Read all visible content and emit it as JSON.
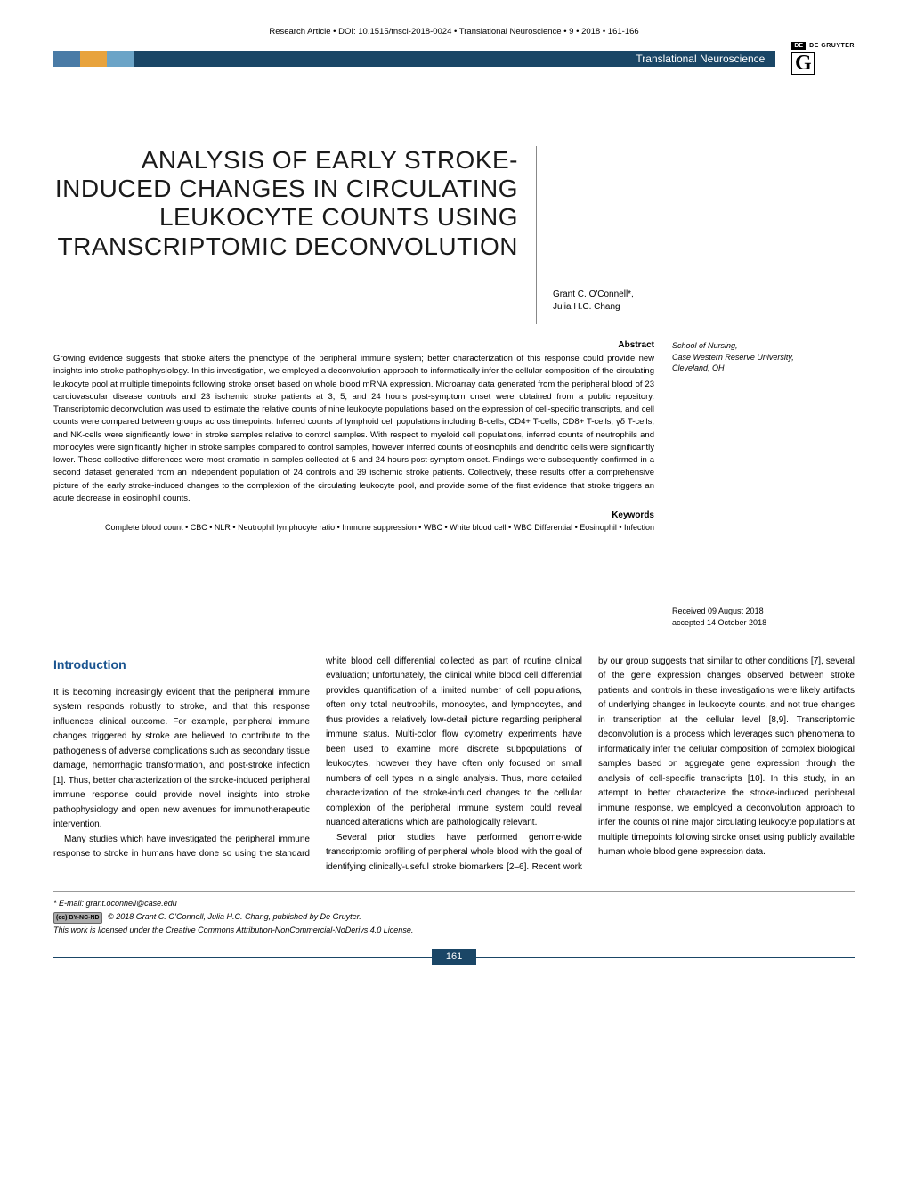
{
  "header": {
    "citation": "Research Article • DOI: 10.1515/tnsci-2018-0024 • Translational Neuroscience • 9 • 2018 • 161-166",
    "journal": "Translational Neuroscience",
    "publisher_de": "DE",
    "publisher_name": "DE GRUYTER",
    "publisher_g": "G"
  },
  "title": "ANALYSIS OF EARLY STROKE-INDUCED CHANGES IN CIRCULATING LEUKOCYTE COUNTS USING TRANSCRIPTOMIC DECONVOLUTION",
  "authors_line1": "Grant C. O'Connell*,",
  "authors_line2": " Julia H.C. Chang",
  "affiliation_line1": "School of Nursing,",
  "affiliation_line2": "Case Western Reserve University,",
  "affiliation_line3": "Cleveland, OH",
  "abstract": {
    "heading": "Abstract",
    "text": "Growing evidence suggests that stroke alters the phenotype of the peripheral immune system; better characterization of this response could provide new insights into stroke pathophysiology. In this investigation, we employed a deconvolution approach to informatically infer the cellular composition of the circulating leukocyte pool at multiple timepoints following stroke onset based on whole blood mRNA expression. Microarray data generated from the peripheral blood of 23 cardiovascular disease controls and 23 ischemic stroke patients at 3, 5, and 24 hours post-symptom onset were obtained from a public repository. Transcriptomic deconvolution was used to estimate the relative counts of nine leukocyte populations based on the expression of cell-specific transcripts, and cell counts were compared between groups across timepoints. Inferred counts of lymphoid cell populations including B-cells, CD4+ T-cells, CD8+ T-cells, γδ T-cells, and NK-cells were significantly lower in stroke samples relative to control samples. With respect to myeloid cell populations, inferred counts of neutrophils and monocytes were significantly higher in stroke samples compared to control samples, however inferred counts of eosinophils and dendritic cells were significantly lower. These collective differences were most dramatic in samples collected at 5 and 24 hours post-symptom onset. Findings were subsequently confirmed in a second dataset generated from an independent population of 24 controls and 39 ischemic stroke patients. Collectively, these results offer a comprehensive picture of the early stroke-induced changes to the complexion of the circulating leukocyte pool, and provide some of the first evidence that stroke triggers an acute decrease in eosinophil counts."
  },
  "keywords": {
    "heading": "Keywords",
    "text": "Complete blood count • CBC • NLR • Neutrophil lymphocyte ratio • Immune suppression • WBC • White blood cell • WBC Differential • Eosinophil • Infection"
  },
  "dates": {
    "received": "Received 09 August 2018",
    "accepted": "accepted 14 October 2018"
  },
  "intro": {
    "heading": "Introduction",
    "para1": "It is becoming increasingly evident that the peripheral immune system responds robustly to stroke, and that this response influences clinical outcome. For example, peripheral immune changes triggered by stroke are believed to contribute to the pathogenesis of adverse complications such as secondary tissue damage, hemorrhagic transformation, and post-stroke infection [1]. Thus, better characterization of the stroke-induced peripheral immune response could provide novel insights into stroke pathophysiology and open new avenues for immunotherapeutic intervention.",
    "para2": "Many studies which have investigated the peripheral immune response to stroke in humans have done so using the standard white blood cell differential collected as part of routine clinical evaluation; unfortunately, the clinical white blood cell differential provides quantification of a limited number of cell populations, often only total neutrophils, monocytes, and lymphocytes, and thus provides a relatively low-detail picture regarding peripheral immune status. Multi-color flow cytometry experiments have been used to examine more discrete subpopulations of leukocytes, however they have often only focused on small numbers of cell types in a single analysis. Thus, more detailed characterization of the stroke-induced changes to the cellular complexion of the peripheral immune system could reveal nuanced alterations which are pathologically relevant.",
    "para3": "Several prior studies have performed genome-wide transcriptomic profiling of peripheral whole blood with the goal of identifying clinically-useful stroke biomarkers [2–6]. Recent work by our group suggests that similar to other conditions [7], several of the gene expression changes observed between stroke patients and controls in these investigations were likely artifacts of underlying changes in leukocyte counts, and not true changes in transcription at the cellular level [8,9]. Transcriptomic deconvolution is a process which leverages such phenomena to informatically infer the cellular composition of complex biological samples based on aggregate gene expression through the analysis of cell-specific transcripts [10]. In this study, in an attempt to better characterize the stroke-induced peripheral immune response, we employed a deconvolution approach to infer the counts of nine major circulating leukocyte populations at multiple timepoints following stroke onset using publicly available human whole blood gene expression data."
  },
  "footnotes": {
    "email": "* E-mail: grant.oconnell@case.edu",
    "cc_label": "(cc) BY-NC-ND",
    "copyright": "© 2018 Grant C. O'Connell, Julia H.C. Chang, published by De Gruyter.",
    "license": "This work is licensed under the Creative Commons Attribution-NonCommercial-NoDerivs 4.0 License."
  },
  "page_number": "161",
  "colors": {
    "header_blue": "#4a7ba6",
    "header_orange": "#e8a33d",
    "header_lightblue": "#6ba4c7",
    "header_darkblue": "#1a4666",
    "intro_heading": "#1a5490"
  }
}
